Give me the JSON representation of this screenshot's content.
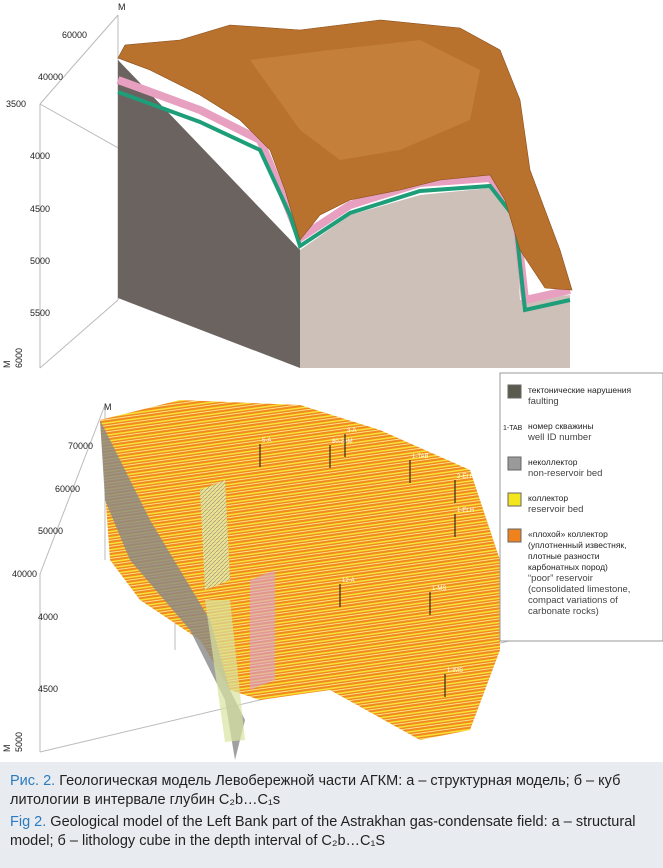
{
  "top_panel": {
    "axis_labels": [
      "M",
      "60000",
      "40000",
      "3500",
      "4000",
      "4500",
      "5000",
      "5500",
      "6000",
      "M"
    ]
  },
  "bottom_panel": {
    "axis_labels": [
      "M",
      "70000",
      "60000",
      "50000",
      "40000",
      "4000",
      "4500",
      "5000",
      "M"
    ],
    "well_labels": [
      "1-TAB",
      "2-ELH",
      "1-ELH",
      "80.2AM",
      "3-A",
      "5-A",
      "12-A",
      "1-MS",
      "1-IMS"
    ]
  },
  "legend": {
    "items": [
      {
        "ru": [
          "тектонические нарушения"
        ],
        "en": [
          "faulting"
        ]
      },
      {
        "symbol": "1-TAB",
        "ru": [
          "номер скважины"
        ],
        "en": [
          "well ID number"
        ]
      },
      {
        "ru": [
          "неколлектор"
        ],
        "en": [
          "non-reservoir bed"
        ]
      },
      {
        "ru": [
          "коллектор"
        ],
        "en": [
          "reservoir bed"
        ]
      },
      {
        "ru": [
          "«плохой» коллектор",
          "(уплотненный известняк,",
          "плотные разности",
          "карбонатных пород)"
        ],
        "en": [
          "“poor” reservoir",
          "(consolidated limestone,",
          "compact variations of",
          "carbonate rocks)"
        ]
      }
    ]
  },
  "caption": {
    "ru_label": "Рис. 2.",
    "ru_text": "Геологическая модель Левобережной части АГКМ: а – структурная модель; б – куб литологии в интервале глубин C₂b…C₁s",
    "en_label": "Fig 2.",
    "en_text": "Geological model of the Left Bank part of the Astrakhan gas-condensate field: a – structural model; б – lithology cube in the depth interval of C₂b…C₁S"
  }
}
